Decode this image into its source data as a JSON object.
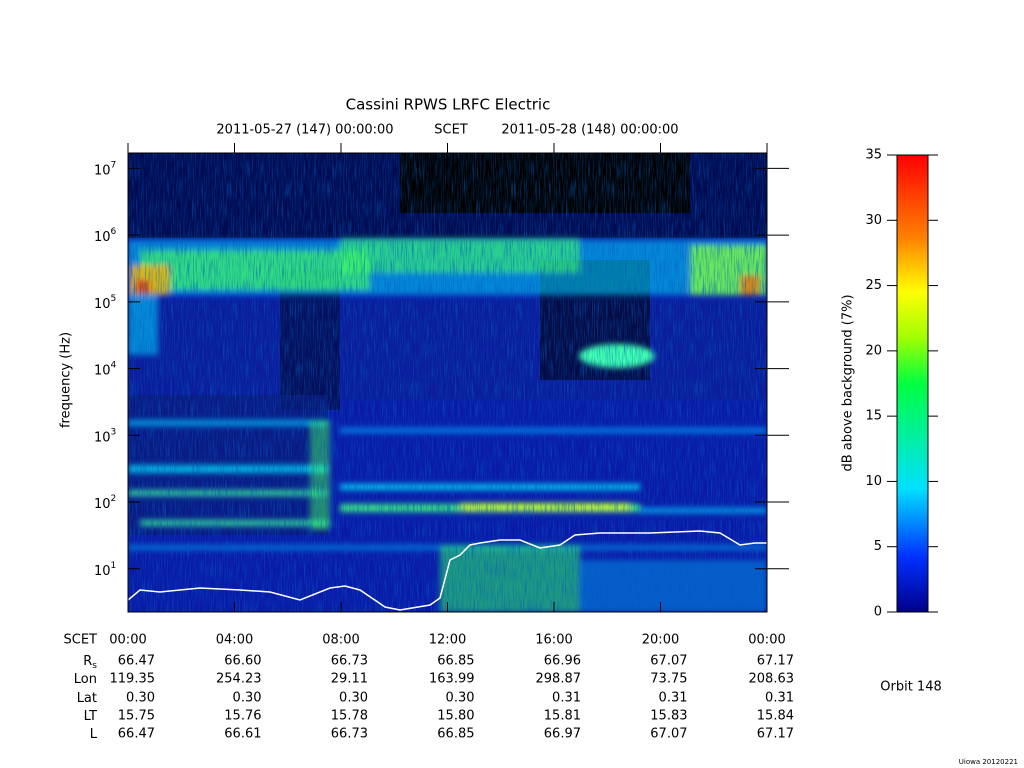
{
  "chart_data": {
    "type": "spectrogram",
    "title": "Cassini RPWS LRFC Electric",
    "time_range": [
      "2011-05-27 (147) 00:00:00",
      "SCET",
      "2011-05-28 (148) 00:00:00"
    ],
    "ylabel": "frequency (Hz)",
    "log_scale": true,
    "ylim": [
      2.25,
      17000000
    ],
    "yticks": [
      {
        "value": 10,
        "label": "10",
        "exponent": "1"
      },
      {
        "value": 100,
        "label": "10",
        "exponent": "2"
      },
      {
        "value": 1000,
        "label": "10",
        "exponent": "3"
      },
      {
        "value": 10000,
        "label": "10",
        "exponent": "4"
      },
      {
        "value": 100000,
        "label": "10",
        "exponent": "5"
      },
      {
        "value": 1000000,
        "label": "10",
        "exponent": "6"
      },
      {
        "value": 10000000,
        "label": "10",
        "exponent": "7"
      }
    ],
    "xlim": [
      0,
      24
    ],
    "xlabel": "SCET",
    "xticks": [
      {
        "value": 0,
        "label": "00:00"
      },
      {
        "value": 4,
        "label": "04:00"
      },
      {
        "value": 8,
        "label": "08:00"
      },
      {
        "value": 12,
        "label": "12:00"
      },
      {
        "value": 16,
        "label": "16:00"
      },
      {
        "value": 20,
        "label": "20:00"
      },
      {
        "value": 24,
        "label": "00:00"
      }
    ],
    "colorbar": {
      "label": "dB above background (7%)",
      "lim": [
        0,
        35
      ],
      "ticks": [
        0,
        5,
        10,
        15,
        20,
        25,
        30,
        35
      ]
    },
    "ephemeris": [
      {
        "name": "R",
        "subscript": "s",
        "values": [
          66.47,
          66.6,
          66.73,
          66.85,
          66.96,
          67.07,
          67.17
        ],
        "value_labels": [
          "66.47",
          "66.60",
          "66.73",
          "66.85",
          "66.96",
          "67.07",
          "67.17"
        ]
      },
      {
        "name": "Lon",
        "values": [
          119.35,
          254.23,
          29.11,
          163.99,
          298.87,
          73.75,
          208.63
        ],
        "value_labels": [
          "119.35",
          "254.23",
          "29.11",
          "163.99",
          "298.87",
          "73.75",
          "208.63"
        ]
      },
      {
        "name": "Lat",
        "values": [
          0.3,
          0.3,
          0.3,
          0.3,
          0.31,
          0.31,
          0.31
        ],
        "value_labels": [
          "0.30",
          "0.30",
          "0.30",
          "0.30",
          "0.31",
          "0.31",
          "0.31"
        ]
      },
      {
        "name": "LT",
        "values": [
          15.75,
          15.76,
          15.78,
          15.8,
          15.81,
          15.83,
          15.84
        ],
        "value_labels": [
          "15.75",
          "15.76",
          "15.78",
          "15.80",
          "15.81",
          "15.83",
          "15.84"
        ]
      },
      {
        "name": "L",
        "values": [
          66.47,
          66.61,
          66.73,
          66.85,
          66.97,
          67.07,
          67.17
        ],
        "value_labels": [
          "66.47",
          "66.61",
          "66.73",
          "66.85",
          "66.97",
          "67.07",
          "67.17"
        ]
      }
    ],
    "annotation": "Orbit 148",
    "footer": "Uiowa 20120221"
  }
}
